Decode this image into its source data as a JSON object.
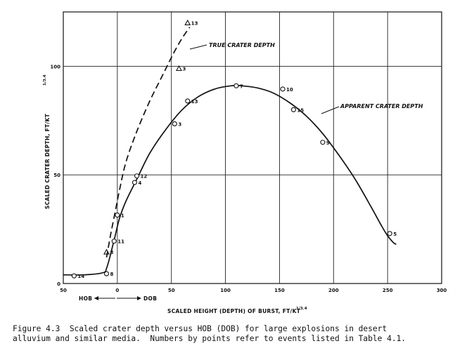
{
  "chart_data": {
    "type": "scatter",
    "title": "",
    "xlabel": "SCALED HEIGHT (DEPTH) OF BURST, FT/KT",
    "xlabel_exponent": "1/3.4",
    "ylabel": "SCALED CRATER DEPTH, FT/KT",
    "ylabel_exponent": "1/3.4",
    "xlim": [
      -50,
      300
    ],
    "ylim": [
      0,
      125
    ],
    "grid": true,
    "x_ticks": [
      -50,
      0,
      50,
      100,
      150,
      200,
      250,
      300
    ],
    "x_tick_labels": [
      "50",
      "0",
      "50",
      "100",
      "150",
      "200",
      "250",
      "300"
    ],
    "y_ticks": [
      0,
      50,
      100
    ],
    "y_tick_labels": [
      "0",
      "50",
      "100"
    ],
    "direction_labels": {
      "left": "HOB",
      "right": "DOB"
    },
    "annotations": [
      "TRUE CRATER DEPTH",
      "APPARENT CRATER DEPTH"
    ],
    "series": [
      {
        "name": "APPARENT CRATER DEPTH",
        "style": "solid",
        "x": [
          -50,
          -30,
          -13,
          -10,
          -7,
          -4,
          -2,
          2,
          8,
          18,
          30,
          45,
          60,
          75,
          90,
          105,
          115,
          130,
          145,
          160,
          175,
          190,
          205,
          220,
          235,
          245,
          250,
          255,
          258
        ],
        "y": [
          4,
          4,
          5,
          7,
          12,
          18,
          22,
          30,
          38,
          48,
          60,
          71,
          80,
          86,
          89.5,
          91,
          91,
          90,
          87.5,
          83,
          77,
          69,
          59,
          48,
          35,
          26,
          22,
          19,
          18
        ]
      },
      {
        "name": "TRUE CRATER DEPTH",
        "style": "dashed",
        "x": [
          -10,
          -6,
          -2,
          2,
          8,
          18,
          30,
          42,
          52,
          60,
          67
        ],
        "y": [
          12,
          23,
          33,
          43,
          56,
          70,
          84,
          96,
          106,
          113,
          118
        ]
      }
    ],
    "points": [
      {
        "label": "14",
        "x": -40,
        "y": 3.5,
        "marker": "circle"
      },
      {
        "label": "8",
        "x": -10,
        "y": 4.5,
        "marker": "circle"
      },
      {
        "label": "8",
        "x": -10,
        "y": 14.5,
        "marker": "triangle"
      },
      {
        "label": "11",
        "x": -3,
        "y": 19.5,
        "marker": "circle"
      },
      {
        "label": "1",
        "x": 0,
        "y": 31.5,
        "marker": "circle"
      },
      {
        "label": "4",
        "x": 16,
        "y": 46.5,
        "marker": "circle"
      },
      {
        "label": "12",
        "x": 18,
        "y": 49.5,
        "marker": "circle"
      },
      {
        "label": "3",
        "x": 53,
        "y": 73.5,
        "marker": "circle"
      },
      {
        "label": "13",
        "x": 65,
        "y": 84,
        "marker": "circle"
      },
      {
        "label": "3",
        "x": 57,
        "y": 99,
        "marker": "triangle"
      },
      {
        "label": "13",
        "x": 65,
        "y": 120,
        "marker": "triangle"
      },
      {
        "label": "7",
        "x": 110,
        "y": 91,
        "marker": "circle"
      },
      {
        "label": "10",
        "x": 153,
        "y": 89.5,
        "marker": "circle"
      },
      {
        "label": "15",
        "x": 163,
        "y": 80,
        "marker": "circle"
      },
      {
        "label": "9",
        "x": 190,
        "y": 65,
        "marker": "circle"
      },
      {
        "label": "5",
        "x": 252,
        "y": 23,
        "marker": "circle"
      }
    ]
  },
  "caption": {
    "line1": "Figure 4.3  Scaled crater depth versus HOB (DOB) for large explosions in desert",
    "line2": "alluvium and similar media.  Numbers by points refer to events listed in Table 4.1."
  }
}
